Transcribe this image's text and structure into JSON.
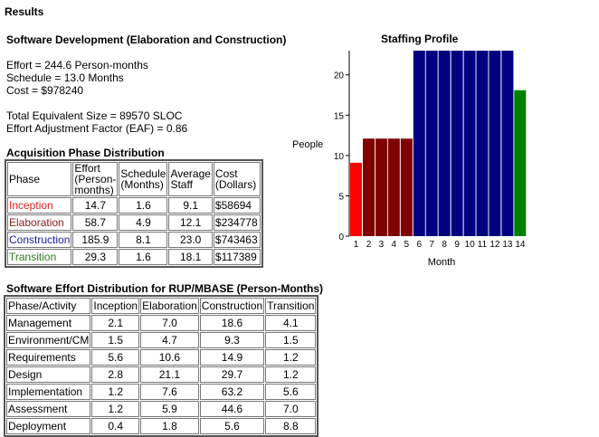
{
  "results_title": "Results",
  "project_title": "Software Development (Elaboration and Construction)",
  "summary": {
    "effort": "Effort = 244.6 Person-months",
    "schedule": "Schedule = 13.0 Months",
    "cost": "Cost = $978240",
    "size": "Total Equivalent Size = 89570 SLOC",
    "eaf": "Effort Adjustment Factor (EAF) = 0.86"
  },
  "acquisition": {
    "title": "Acquisition Phase Distribution",
    "headers": {
      "phase": "Phase",
      "effort": "Effort (Person-months)",
      "schedule": "Schedule (Months)",
      "staff": "Average Staff",
      "cost": "Cost (Dollars)"
    },
    "rows": [
      {
        "phase": "Inception",
        "effort": "14.7",
        "schedule": "1.6",
        "staff": "9.1",
        "cost": "$58694"
      },
      {
        "phase": "Elaboration",
        "effort": "58.7",
        "schedule": "4.9",
        "staff": "12.1",
        "cost": "$234778"
      },
      {
        "phase": "Construction",
        "effort": "185.9",
        "schedule": "8.1",
        "staff": "23.0",
        "cost": "$743463"
      },
      {
        "phase": "Transition",
        "effort": "29.3",
        "schedule": "1.6",
        "staff": "18.1",
        "cost": "$117389"
      }
    ]
  },
  "effort_distribution": {
    "title": "Software Effort Distribution for RUP/MBASE (Person-Months)",
    "headers": [
      "Phase/Activity",
      "Inception",
      "Elaboration",
      "Construction",
      "Transition"
    ],
    "rows": [
      {
        "activity": "Management",
        "inception": "2.1",
        "elaboration": "7.0",
        "construction": "18.6",
        "transition": "4.1"
      },
      {
        "activity": "Environment/CM",
        "inception": "1.5",
        "elaboration": "4.7",
        "construction": "9.3",
        "transition": "1.5"
      },
      {
        "activity": "Requirements",
        "inception": "5.6",
        "elaboration": "10.6",
        "construction": "14.9",
        "transition": "1.2"
      },
      {
        "activity": "Design",
        "inception": "2.8",
        "elaboration": "21.1",
        "construction": "29.7",
        "transition": "1.2"
      },
      {
        "activity": "Implementation",
        "inception": "1.2",
        "elaboration": "7.6",
        "construction": "63.2",
        "transition": "5.6"
      },
      {
        "activity": "Assessment",
        "inception": "1.2",
        "elaboration": "5.9",
        "construction": "44.6",
        "transition": "7.0"
      },
      {
        "activity": "Deployment",
        "inception": "0.4",
        "elaboration": "1.8",
        "construction": "5.6",
        "transition": "8.8"
      }
    ]
  },
  "chart_data": {
    "type": "bar",
    "title": "Staffing Profile",
    "xlabel": "Month",
    "ylabel": "People",
    "categories": [
      "1",
      "2",
      "3",
      "4",
      "5",
      "6",
      "7",
      "8",
      "9",
      "10",
      "11",
      "12",
      "13",
      "14"
    ],
    "values": [
      9.1,
      12.1,
      12.1,
      12.1,
      12.1,
      23.0,
      23.0,
      23.0,
      23.0,
      23.0,
      23.0,
      23.0,
      23.0,
      18.1
    ],
    "phases": [
      "Inception",
      "Elaboration",
      "Elaboration",
      "Elaboration",
      "Elaboration",
      "Construction",
      "Construction",
      "Construction",
      "Construction",
      "Construction",
      "Construction",
      "Construction",
      "Construction",
      "Transition"
    ],
    "phase_colors": {
      "Inception": "#ff0000",
      "Elaboration": "#800000",
      "Construction": "#000080",
      "Transition": "#008000"
    },
    "yticks": [
      0,
      5,
      10,
      15,
      20
    ],
    "ylim": [
      0,
      23
    ]
  }
}
